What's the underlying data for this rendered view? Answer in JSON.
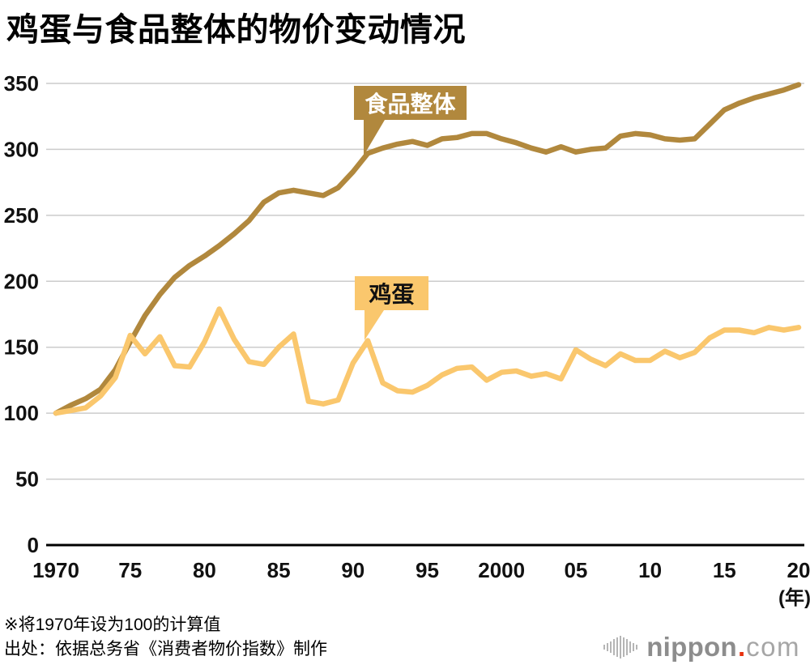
{
  "title": "鸡蛋与食品整体的物价变动情况",
  "footnotes": {
    "note": "※将1970年设为100的计算值",
    "source": "出处：依据总务省《消费者物价指数》制作"
  },
  "logo": {
    "name": "nippon",
    "dot": ".",
    "tld": "com"
  },
  "callouts": [
    {
      "label": "食品整体",
      "bg": "#B1883D",
      "text_color": "#ffffff"
    },
    {
      "label": "鸡蛋",
      "bg": "#FAC76D",
      "text_color": "#111111"
    }
  ],
  "chart_data": {
    "type": "line",
    "title": "鸡蛋与食品整体的物价变动情况",
    "xlabel": "(年)",
    "ylabel": "",
    "x_axis_unit": "(年)",
    "xlim": [
      1970,
      2020
    ],
    "ylim": [
      0,
      350
    ],
    "grid": "horizontal",
    "legend_position": "inline-callouts",
    "y_ticks": [
      0,
      50,
      100,
      150,
      200,
      250,
      300,
      350
    ],
    "x_ticks": [
      {
        "year": 1970,
        "label": "1970"
      },
      {
        "year": 1975,
        "label": "75"
      },
      {
        "year": 1980,
        "label": "80"
      },
      {
        "year": 1985,
        "label": "85"
      },
      {
        "year": 1990,
        "label": "90"
      },
      {
        "year": 1995,
        "label": "95"
      },
      {
        "year": 2000,
        "label": "2000"
      },
      {
        "year": 2005,
        "label": "05"
      },
      {
        "year": 2010,
        "label": "10"
      },
      {
        "year": 2015,
        "label": "15"
      },
      {
        "year": 2020,
        "label": "20"
      }
    ],
    "x": [
      1970,
      1971,
      1972,
      1973,
      1974,
      1975,
      1976,
      1977,
      1978,
      1979,
      1980,
      1981,
      1982,
      1983,
      1984,
      1985,
      1986,
      1987,
      1988,
      1989,
      1990,
      1991,
      1992,
      1993,
      1994,
      1995,
      1996,
      1997,
      1998,
      1999,
      2000,
      2001,
      2002,
      2003,
      2004,
      2005,
      2006,
      2007,
      2008,
      2009,
      2010,
      2011,
      2012,
      2013,
      2014,
      2015,
      2016,
      2017,
      2018,
      2019,
      2020
    ],
    "series": [
      {
        "key": "food",
        "name": "食品整体",
        "color": "#B1883D",
        "values": [
          100,
          106,
          111,
          118,
          133,
          154,
          174,
          190,
          203,
          212,
          219,
          227,
          236,
          246,
          260,
          267,
          269,
          267,
          265,
          271,
          283,
          297,
          301,
          304,
          306,
          303,
          308,
          309,
          312,
          312,
          308,
          305,
          301,
          298,
          302,
          298,
          300,
          301,
          310,
          312,
          311,
          308,
          307,
          308,
          319,
          330,
          335,
          339,
          342,
          345,
          349
        ]
      },
      {
        "key": "egg",
        "name": "鸡蛋",
        "color": "#FAC76D",
        "values": [
          100,
          102,
          104,
          113,
          127,
          159,
          145,
          158,
          136,
          135,
          154,
          179,
          156,
          139,
          137,
          150,
          160,
          109,
          107,
          110,
          138,
          155,
          123,
          117,
          116,
          121,
          129,
          134,
          135,
          125,
          131,
          132,
          128,
          130,
          126,
          148,
          141,
          136,
          145,
          140,
          140,
          147,
          142,
          146,
          157,
          163,
          163,
          161,
          165,
          163,
          165
        ]
      }
    ]
  }
}
